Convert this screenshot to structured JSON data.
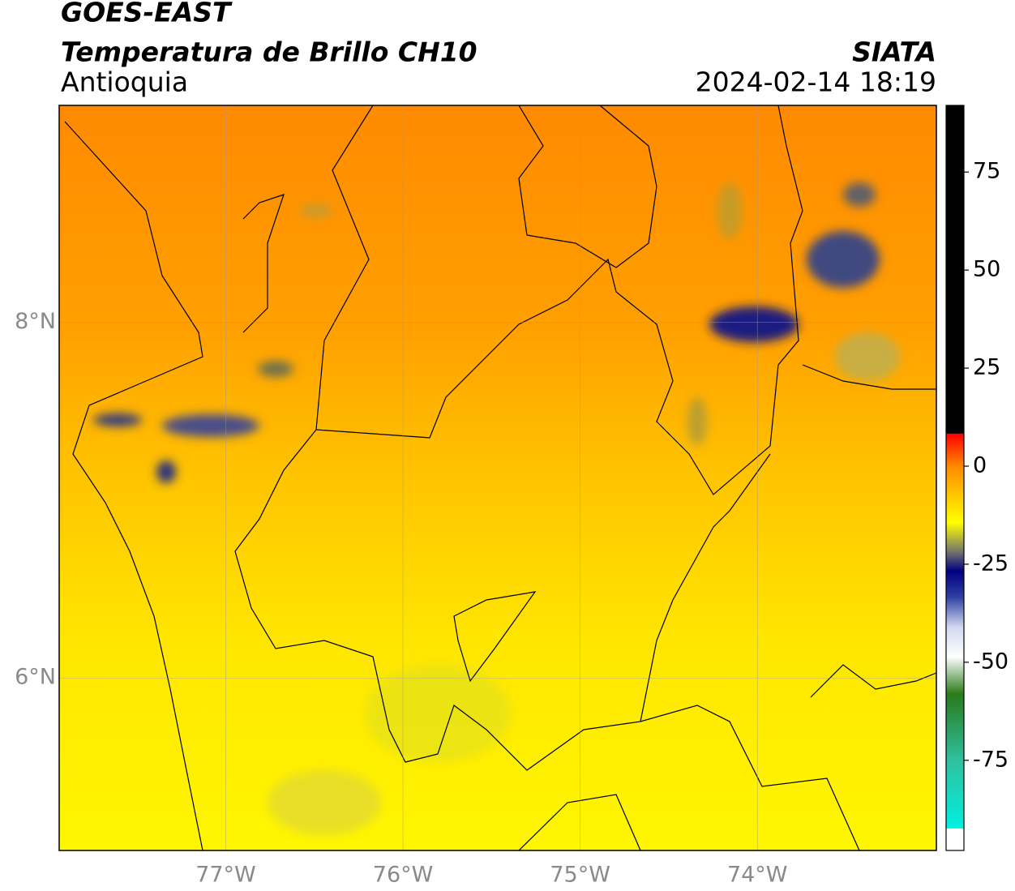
{
  "header": {
    "title": "GOES-EAST",
    "subtitle": "Temperatura de Brillo CH10",
    "region": "Antioquia",
    "source": "SIATA",
    "datetime": "2024-02-14 18:19"
  },
  "map": {
    "lon_range": [
      -77.94,
      -72.99
    ],
    "lat_range": [
      5.03,
      9.22
    ],
    "lon_ticks": [
      {
        "value": -77,
        "label": "77°W"
      },
      {
        "value": -76,
        "label": "76°W"
      },
      {
        "value": -75,
        "label": "75°W"
      },
      {
        "value": -74,
        "label": "74°W"
      }
    ],
    "lat_ticks": [
      {
        "value": 8,
        "label": "8°N"
      },
      {
        "value": 6,
        "label": "6°N"
      }
    ],
    "grid": true
  },
  "colorbar": {
    "range": [
      -98,
      92
    ],
    "ticks": [
      75,
      50,
      25,
      0,
      -25,
      -50,
      -75
    ]
  }
}
